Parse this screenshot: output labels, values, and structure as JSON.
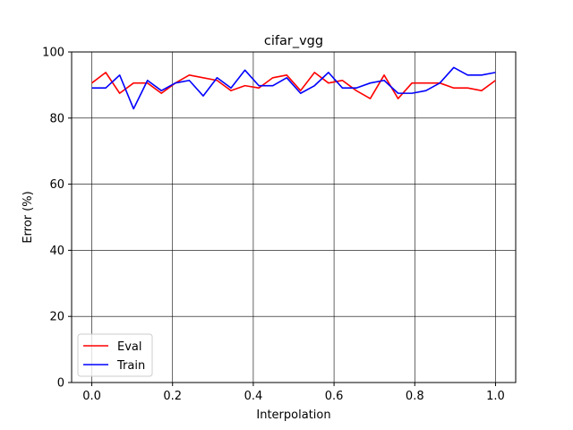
{
  "chart_data": {
    "type": "line",
    "title": "cifar_vgg",
    "xlabel": "Interpolation",
    "ylabel": "Error (%)",
    "xlim": [
      -0.05,
      1.05
    ],
    "ylim": [
      0,
      100
    ],
    "xticks": [
      0.0,
      0.2,
      0.4,
      0.6,
      0.8,
      1.0
    ],
    "xtick_labels": [
      "0.0",
      "0.2",
      "0.4",
      "0.6",
      "0.8",
      "1.0"
    ],
    "yticks": [
      0,
      20,
      40,
      60,
      80,
      100
    ],
    "ytick_labels": [
      "0",
      "20",
      "40",
      "60",
      "80",
      "100"
    ],
    "grid": true,
    "legend_position": "lower-left",
    "x": [
      0.0,
      0.0345,
      0.069,
      0.1034,
      0.1379,
      0.1724,
      0.2069,
      0.2414,
      0.2759,
      0.3103,
      0.3448,
      0.3793,
      0.4138,
      0.4483,
      0.4828,
      0.5172,
      0.5517,
      0.5862,
      0.6207,
      0.6552,
      0.6897,
      0.7241,
      0.7586,
      0.7931,
      0.8276,
      0.8621,
      0.8966,
      0.931,
      0.9655,
      1.0
    ],
    "series": [
      {
        "name": "Eval",
        "color": "#ff0000",
        "values": [
          90.6,
          93.8,
          87.5,
          90.6,
          90.6,
          87.5,
          90.6,
          93.0,
          92.2,
          91.4,
          88.3,
          89.8,
          89.1,
          92.2,
          93.0,
          88.3,
          93.8,
          90.6,
          91.4,
          88.3,
          85.9,
          93.0,
          85.9,
          90.6,
          90.6,
          90.6,
          89.1,
          89.1,
          88.3,
          91.4
        ]
      },
      {
        "name": "Train",
        "color": "#0000ff",
        "values": [
          89.1,
          89.1,
          93.0,
          82.8,
          91.4,
          88.3,
          90.6,
          91.4,
          86.7,
          92.2,
          89.1,
          94.5,
          89.8,
          89.8,
          92.2,
          87.5,
          89.8,
          93.8,
          89.1,
          89.1,
          90.6,
          91.4,
          87.5,
          87.5,
          88.3,
          90.6,
          95.3,
          93.0,
          93.0,
          93.8
        ]
      }
    ]
  }
}
